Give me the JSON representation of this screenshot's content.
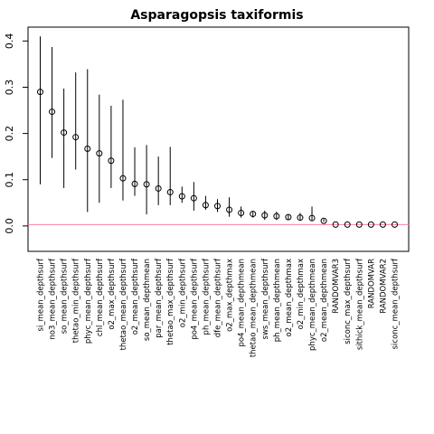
{
  "chart_data": {
    "type": "scatter",
    "title": "Asparagopsis taxiformis",
    "xlabel": "",
    "ylabel": "",
    "ylim": [
      -0.055,
      0.43
    ],
    "yticks": [
      0.0,
      0.1,
      0.2,
      0.3,
      0.4
    ],
    "ytick_labels": [
      "0.0",
      "0.1",
      "0.2",
      "0.3",
      "0.4"
    ],
    "grid": false,
    "legend": "none",
    "reference_line": {
      "y": 0.003,
      "color": "#ff80a0"
    },
    "categories": [
      "si_mean_depthsurf",
      "no3_mean_depthsurf",
      "so_mean_depthsurf",
      "thetao_min_depthsurf",
      "phyc_mean_depthsurf",
      "chl_mean_depthsurf",
      "o2_max_depthsurf",
      "thetao_mean_depthsurf",
      "o2_mean_depthsurf",
      "so_mean_depthmean",
      "par_mean_depthsurf",
      "thetao_max_depthsurf",
      "o2_min_depthsurf",
      "po4_mean_depthsurf",
      "ph_mean_depthsurf",
      "dfe_mean_depthsurf",
      "o2_max_depthmax",
      "po4_mean_depthmean",
      "thetao_mean_depthmean",
      "sws_mean_depthsurf",
      "ph_mean_depthmean",
      "o2_mean_depthmax",
      "o2_min_depthmax",
      "phyc_mean_depthmean",
      "o2_mean_depthmean",
      "RANDOMVAR3",
      "siconc_max_depthsurf",
      "sithick_mean_depthsurf",
      "RANDOMVAR",
      "RANDOMVAR2",
      "siconc_mean_depthsurf"
    ],
    "values": [
      0.29,
      0.247,
      0.202,
      0.192,
      0.167,
      0.157,
      0.141,
      0.103,
      0.091,
      0.09,
      0.081,
      0.073,
      0.064,
      0.06,
      0.045,
      0.043,
      0.035,
      0.028,
      0.026,
      0.023,
      0.021,
      0.019,
      0.018,
      0.017,
      0.011,
      0.003,
      0.003,
      0.003,
      0.003,
      0.003,
      0.003
    ],
    "lower": [
      0.09,
      0.147,
      0.082,
      0.122,
      0.03,
      0.05,
      0.082,
      0.055,
      0.065,
      0.025,
      0.045,
      0.045,
      0.05,
      0.033,
      0.035,
      0.03,
      0.02,
      0.018,
      0.018,
      0.013,
      0.013,
      0.013,
      0.011,
      0.012,
      0.009,
      0.003,
      0.003,
      0.003,
      0.003,
      0.003,
      0.003
    ],
    "upper": [
      0.41,
      0.387,
      0.297,
      0.332,
      0.339,
      0.284,
      0.26,
      0.273,
      0.17,
      0.175,
      0.15,
      0.171,
      0.085,
      0.095,
      0.065,
      0.058,
      0.062,
      0.042,
      0.031,
      0.033,
      0.031,
      0.025,
      0.028,
      0.042,
      0.015,
      0.003,
      0.003,
      0.003,
      0.003,
      0.003,
      0.003
    ]
  }
}
